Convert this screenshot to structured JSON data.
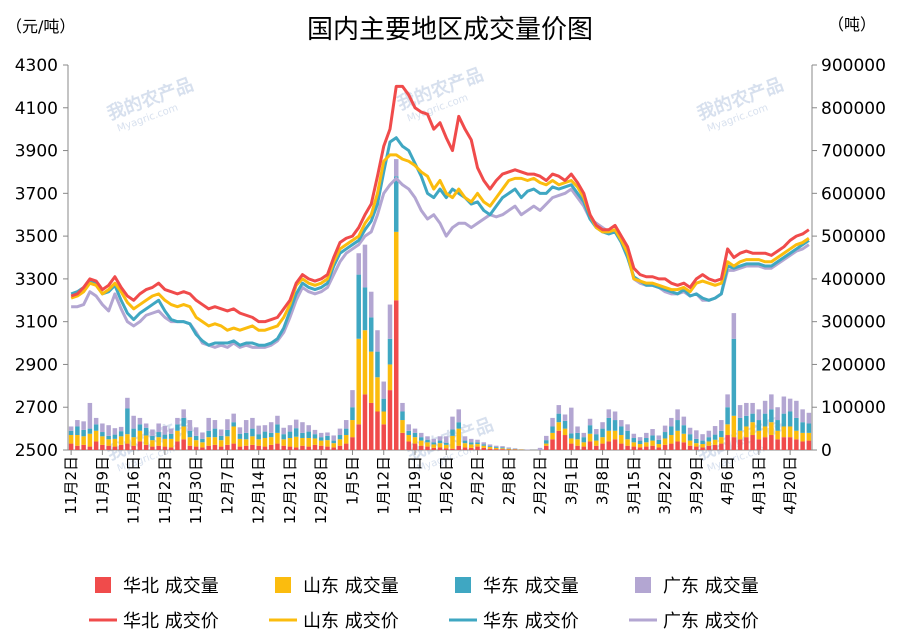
{
  "chart_data": {
    "type": "bar",
    "title": "国内主要地区成交量价图",
    "y_label": "（元/吨）",
    "y2_label": "（吨）",
    "watermark": [
      "我的农产品",
      "Myagric.com"
    ],
    "categories": [
      "11月2日",
      null,
      null,
      null,
      null,
      "11月9日",
      null,
      null,
      null,
      null,
      "11月16日",
      null,
      null,
      null,
      null,
      "11月23日",
      null,
      null,
      null,
      null,
      "11月30日",
      null,
      null,
      null,
      null,
      "12月7日",
      null,
      null,
      null,
      null,
      "12月14日",
      null,
      null,
      null,
      null,
      "12月21日",
      null,
      null,
      null,
      null,
      "12月28日",
      null,
      null,
      null,
      null,
      "1月5日",
      null,
      null,
      null,
      null,
      "1月12日",
      null,
      null,
      null,
      null,
      "1月19日",
      null,
      null,
      null,
      null,
      "1月26日",
      null,
      null,
      null,
      null,
      "2月2日",
      null,
      null,
      null,
      null,
      "2月8日",
      null,
      null,
      null,
      null,
      "2月22日",
      null,
      null,
      null,
      null,
      "3月1日",
      null,
      null,
      null,
      null,
      "3月8日",
      null,
      null,
      null,
      null,
      "3月15日",
      null,
      null,
      null,
      null,
      "3月22日",
      null,
      null,
      null,
      null,
      "3月29日",
      null,
      null,
      null,
      null,
      "4月6日",
      null,
      null,
      null,
      null,
      "4月13日",
      null,
      null,
      null,
      null,
      "4月20日",
      null,
      null,
      null
    ],
    "ylim": [
      2500,
      4300
    ],
    "yticks": [
      2500,
      2700,
      2900,
      3100,
      3300,
      3500,
      3700,
      3900,
      4100,
      4300
    ],
    "y2lim": [
      0,
      900000
    ],
    "y2ticks": [
      0,
      100000,
      200000,
      300000,
      400000,
      500000,
      600000,
      700000,
      800000,
      900000
    ],
    "legend": "bottom",
    "series": [
      {
        "name": "华北 成交量",
        "type": "bar",
        "axis": "y2",
        "color": "#f04b4b",
        "values": [
          15000,
          10000,
          12000,
          8000,
          20000,
          12000,
          10000,
          8000,
          12000,
          15000,
          10000,
          20000,
          12000,
          8000,
          10000,
          8000,
          6000,
          20000,
          25000,
          10000,
          8000,
          6000,
          10000,
          12000,
          8000,
          12000,
          15000,
          8000,
          10000,
          12000,
          10000,
          8000,
          12000,
          15000,
          10000,
          8000,
          6000,
          10000,
          8000,
          12000,
          10000,
          8000,
          6000,
          10000,
          15000,
          30000,
          60000,
          130000,
          110000,
          90000,
          60000,
          140000,
          350000,
          40000,
          20000,
          15000,
          10000,
          8000,
          5000,
          6000,
          4000,
          3000,
          10000,
          6000,
          5000,
          8000,
          5000,
          3000,
          2000,
          2000,
          1000,
          1000,
          0,
          0,
          0,
          0,
          10000,
          25000,
          45000,
          35000,
          15000,
          10000,
          8000,
          20000,
          10000,
          15000,
          20000,
          25000,
          15000,
          10000,
          8000,
          6000,
          8000,
          10000,
          6000,
          12000,
          15000,
          20000,
          18000,
          10000,
          8000,
          6000,
          10000,
          12000,
          15000,
          35000,
          30000,
          25000,
          30000,
          35000,
          25000,
          30000,
          35000,
          25000,
          30000,
          30000,
          25000,
          20000,
          22000
        ]
      },
      {
        "name": "山东 成交量",
        "type": "bar",
        "axis": "y2",
        "color": "#fbbc0e",
        "values": [
          20000,
          25000,
          20000,
          30000,
          25000,
          20000,
          15000,
          18000,
          20000,
          22000,
          20000,
          25000,
          22000,
          15000,
          20000,
          18000,
          20000,
          25000,
          30000,
          20000,
          15000,
          12000,
          20000,
          18000,
          15000,
          20000,
          40000,
          18000,
          15000,
          20000,
          15000,
          20000,
          18000,
          25000,
          15000,
          20000,
          25000,
          18000,
          20000,
          15000,
          12000,
          15000,
          10000,
          15000,
          20000,
          40000,
          200000,
          150000,
          120000,
          80000,
          30000,
          60000,
          160000,
          30000,
          15000,
          15000,
          12000,
          10000,
          8000,
          10000,
          8000,
          30000,
          40000,
          10000,
          8000,
          6000,
          5000,
          4000,
          3000,
          2000,
          2000,
          1000,
          1000,
          0,
          0,
          0,
          5000,
          15000,
          20000,
          15000,
          12000,
          15000,
          10000,
          18000,
          12000,
          15000,
          25000,
          20000,
          20000,
          15000,
          10000,
          8000,
          10000,
          12000,
          8000,
          15000,
          20000,
          25000,
          20000,
          12000,
          8000,
          8000,
          10000,
          12000,
          15000,
          25000,
          50000,
          20000,
          25000,
          30000,
          20000,
          25000,
          30000,
          20000,
          25000,
          25000,
          20000,
          20000,
          18000
        ]
      },
      {
        "name": "华东 成交量",
        "type": "bar",
        "axis": "y2",
        "color": "#3fa7c2",
        "values": [
          10000,
          20000,
          15000,
          12000,
          15000,
          10000,
          8000,
          10000,
          12000,
          60000,
          20000,
          15000,
          18000,
          10000,
          12000,
          10000,
          12000,
          15000,
          20000,
          15000,
          10000,
          8000,
          15000,
          20000,
          10000,
          15000,
          10000,
          12000,
          15000,
          18000,
          12000,
          15000,
          10000,
          20000,
          12000,
          15000,
          20000,
          12000,
          15000,
          10000,
          8000,
          10000,
          6000,
          10000,
          15000,
          30000,
          150000,
          100000,
          80000,
          60000,
          30000,
          60000,
          130000,
          20000,
          10000,
          10000,
          8000,
          6000,
          5000,
          6000,
          5000,
          15000,
          15000,
          6000,
          5000,
          4000,
          3000,
          2000,
          2000,
          2000,
          1000,
          1000,
          0,
          0,
          0,
          0,
          8000,
          15000,
          20000,
          18000,
          12000,
          15000,
          12000,
          20000,
          15000,
          20000,
          30000,
          25000,
          20000,
          20000,
          10000,
          8000,
          10000,
          12000,
          10000,
          15000,
          20000,
          25000,
          20000,
          15000,
          10000,
          8000,
          10000,
          12000,
          15000,
          40000,
          180000,
          30000,
          25000,
          20000,
          25000,
          30000,
          30000,
          25000,
          30000,
          35000,
          30000,
          25000,
          22000
        ]
      },
      {
        "name": "广东 成交量",
        "type": "bar",
        "axis": "y2",
        "color": "#b3a6d2",
        "values": [
          10000,
          15000,
          20000,
          60000,
          15000,
          20000,
          25000,
          15000,
          10000,
          25000,
          30000,
          15000,
          10000,
          15000,
          20000,
          20000,
          12000,
          15000,
          20000,
          25000,
          20000,
          15000,
          30000,
          20000,
          15000,
          25000,
          20000,
          15000,
          30000,
          25000,
          20000,
          15000,
          25000,
          20000,
          15000,
          15000,
          20000,
          25000,
          15000,
          10000,
          10000,
          8000,
          12000,
          15000,
          20000,
          40000,
          50000,
          100000,
          60000,
          50000,
          40000,
          80000,
          40000,
          20000,
          15000,
          10000,
          10000,
          8000,
          8000,
          10000,
          15000,
          30000,
          30000,
          10000,
          8000,
          6000,
          5000,
          4000,
          3000,
          3000,
          2000,
          1000,
          1000,
          1000,
          0,
          5000,
          10000,
          20000,
          20000,
          15000,
          60000,
          15000,
          10000,
          15000,
          12000,
          15000,
          20000,
          20000,
          15000,
          15000,
          10000,
          8000,
          12000,
          15000,
          10000,
          15000,
          20000,
          25000,
          20000,
          15000,
          20000,
          15000,
          15000,
          20000,
          25000,
          30000,
          60000,
          30000,
          30000,
          25000,
          25000,
          30000,
          35000,
          30000,
          40000,
          30000,
          40000,
          30000,
          25000
        ]
      },
      {
        "name": "华北 成交价",
        "type": "line",
        "axis": "y",
        "color": "#f04b4b",
        "values": [
          3220,
          3230,
          3260,
          3300,
          3290,
          3250,
          3270,
          3310,
          3260,
          3220,
          3200,
          3230,
          3250,
          3260,
          3280,
          3250,
          3240,
          3230,
          3240,
          3230,
          3200,
          3180,
          3160,
          3170,
          3160,
          3150,
          3160,
          3140,
          3130,
          3120,
          3100,
          3100,
          3110,
          3120,
          3160,
          3200,
          3280,
          3320,
          3300,
          3290,
          3300,
          3320,
          3400,
          3470,
          3490,
          3500,
          3540,
          3600,
          3650,
          3780,
          3920,
          4000,
          4200,
          4200,
          4160,
          4100,
          4080,
          4070,
          4000,
          4030,
          3960,
          3900,
          4060,
          4000,
          3950,
          3820,
          3760,
          3720,
          3760,
          3790,
          3800,
          3810,
          3800,
          3790,
          3790,
          3780,
          3760,
          3790,
          3780,
          3760,
          3790,
          3750,
          3700,
          3600,
          3550,
          3530,
          3530,
          3550,
          3500,
          3450,
          3350,
          3320,
          3310,
          3310,
          3300,
          3300,
          3280,
          3270,
          3280,
          3260,
          3300,
          3320,
          3300,
          3290,
          3300,
          3440,
          3400,
          3420,
          3430,
          3420,
          3420,
          3420,
          3410,
          3430,
          3450,
          3480,
          3500,
          3510,
          3530
        ]
      },
      {
        "name": "山东 成交价",
        "type": "line",
        "axis": "y",
        "color": "#fbbc0e",
        "values": [
          3210,
          3220,
          3240,
          3280,
          3270,
          3230,
          3250,
          3280,
          3240,
          3190,
          3160,
          3180,
          3200,
          3220,
          3230,
          3200,
          3180,
          3170,
          3180,
          3170,
          3120,
          3100,
          3080,
          3090,
          3080,
          3060,
          3070,
          3060,
          3070,
          3080,
          3060,
          3060,
          3070,
          3080,
          3120,
          3180,
          3270,
          3300,
          3280,
          3270,
          3280,
          3300,
          3380,
          3440,
          3460,
          3480,
          3500,
          3560,
          3600,
          3700,
          3850,
          3880,
          3880,
          3860,
          3850,
          3830,
          3800,
          3780,
          3720,
          3760,
          3700,
          3680,
          3720,
          3680,
          3660,
          3700,
          3660,
          3640,
          3680,
          3720,
          3760,
          3770,
          3770,
          3760,
          3770,
          3750,
          3740,
          3760,
          3740,
          3750,
          3760,
          3730,
          3680,
          3600,
          3540,
          3520,
          3520,
          3530,
          3480,
          3420,
          3300,
          3290,
          3280,
          3280,
          3270,
          3260,
          3250,
          3250,
          3260,
          3240,
          3280,
          3290,
          3280,
          3270,
          3280,
          3380,
          3360,
          3380,
          3390,
          3390,
          3390,
          3380,
          3380,
          3400,
          3420,
          3440,
          3460,
          3470,
          3490
        ]
      },
      {
        "name": "华东 成交价",
        "type": "line",
        "axis": "y",
        "color": "#3fa7c2",
        "values": [
          3230,
          3240,
          3260,
          3290,
          3280,
          3230,
          3240,
          3270,
          3200,
          3140,
          3110,
          3140,
          3160,
          3180,
          3200,
          3150,
          3110,
          3100,
          3100,
          3090,
          3040,
          3010,
          2990,
          3000,
          3000,
          3000,
          3010,
          2990,
          3000,
          3000,
          2990,
          2990,
          3000,
          3020,
          3070,
          3150,
          3230,
          3280,
          3260,
          3250,
          3260,
          3280,
          3360,
          3420,
          3440,
          3460,
          3480,
          3530,
          3570,
          3650,
          3800,
          3940,
          3960,
          3920,
          3900,
          3840,
          3780,
          3700,
          3680,
          3720,
          3680,
          3720,
          3700,
          3680,
          3650,
          3660,
          3620,
          3600,
          3640,
          3680,
          3700,
          3720,
          3680,
          3710,
          3720,
          3700,
          3700,
          3730,
          3720,
          3730,
          3740,
          3700,
          3660,
          3580,
          3540,
          3520,
          3510,
          3520,
          3470,
          3400,
          3310,
          3290,
          3270,
          3270,
          3260,
          3250,
          3240,
          3230,
          3250,
          3220,
          3230,
          3210,
          3200,
          3210,
          3230,
          3360,
          3350,
          3360,
          3370,
          3370,
          3370,
          3360,
          3360,
          3380,
          3400,
          3420,
          3440,
          3460,
          3480
        ]
      },
      {
        "name": "广东 成交价",
        "type": "line",
        "axis": "y",
        "color": "#b3a6d2",
        "values": [
          3170,
          3170,
          3180,
          3240,
          3220,
          3180,
          3150,
          3230,
          3160,
          3100,
          3080,
          3100,
          3130,
          3140,
          3150,
          3120,
          3100,
          3100,
          3100,
          3090,
          3050,
          3000,
          2990,
          2980,
          2990,
          2980,
          3000,
          2980,
          2990,
          2980,
          2980,
          2980,
          2990,
          3010,
          3050,
          3120,
          3200,
          3260,
          3240,
          3230,
          3240,
          3260,
          3320,
          3380,
          3420,
          3440,
          3460,
          3500,
          3520,
          3600,
          3700,
          3740,
          3770,
          3740,
          3720,
          3680,
          3620,
          3580,
          3600,
          3560,
          3500,
          3540,
          3560,
          3560,
          3540,
          3560,
          3580,
          3600,
          3590,
          3600,
          3620,
          3640,
          3600,
          3620,
          3640,
          3620,
          3650,
          3680,
          3690,
          3700,
          3720,
          3680,
          3640,
          3580,
          3560,
          3540,
          3520,
          3520,
          3480,
          3410,
          3300,
          3280,
          3270,
          3270,
          3260,
          3240,
          3230,
          3230,
          3240,
          3220,
          3230,
          3200,
          3200,
          3210,
          3230,
          3340,
          3340,
          3350,
          3360,
          3360,
          3360,
          3350,
          3350,
          3370,
          3390,
          3410,
          3430,
          3440,
          3460
        ]
      }
    ]
  }
}
